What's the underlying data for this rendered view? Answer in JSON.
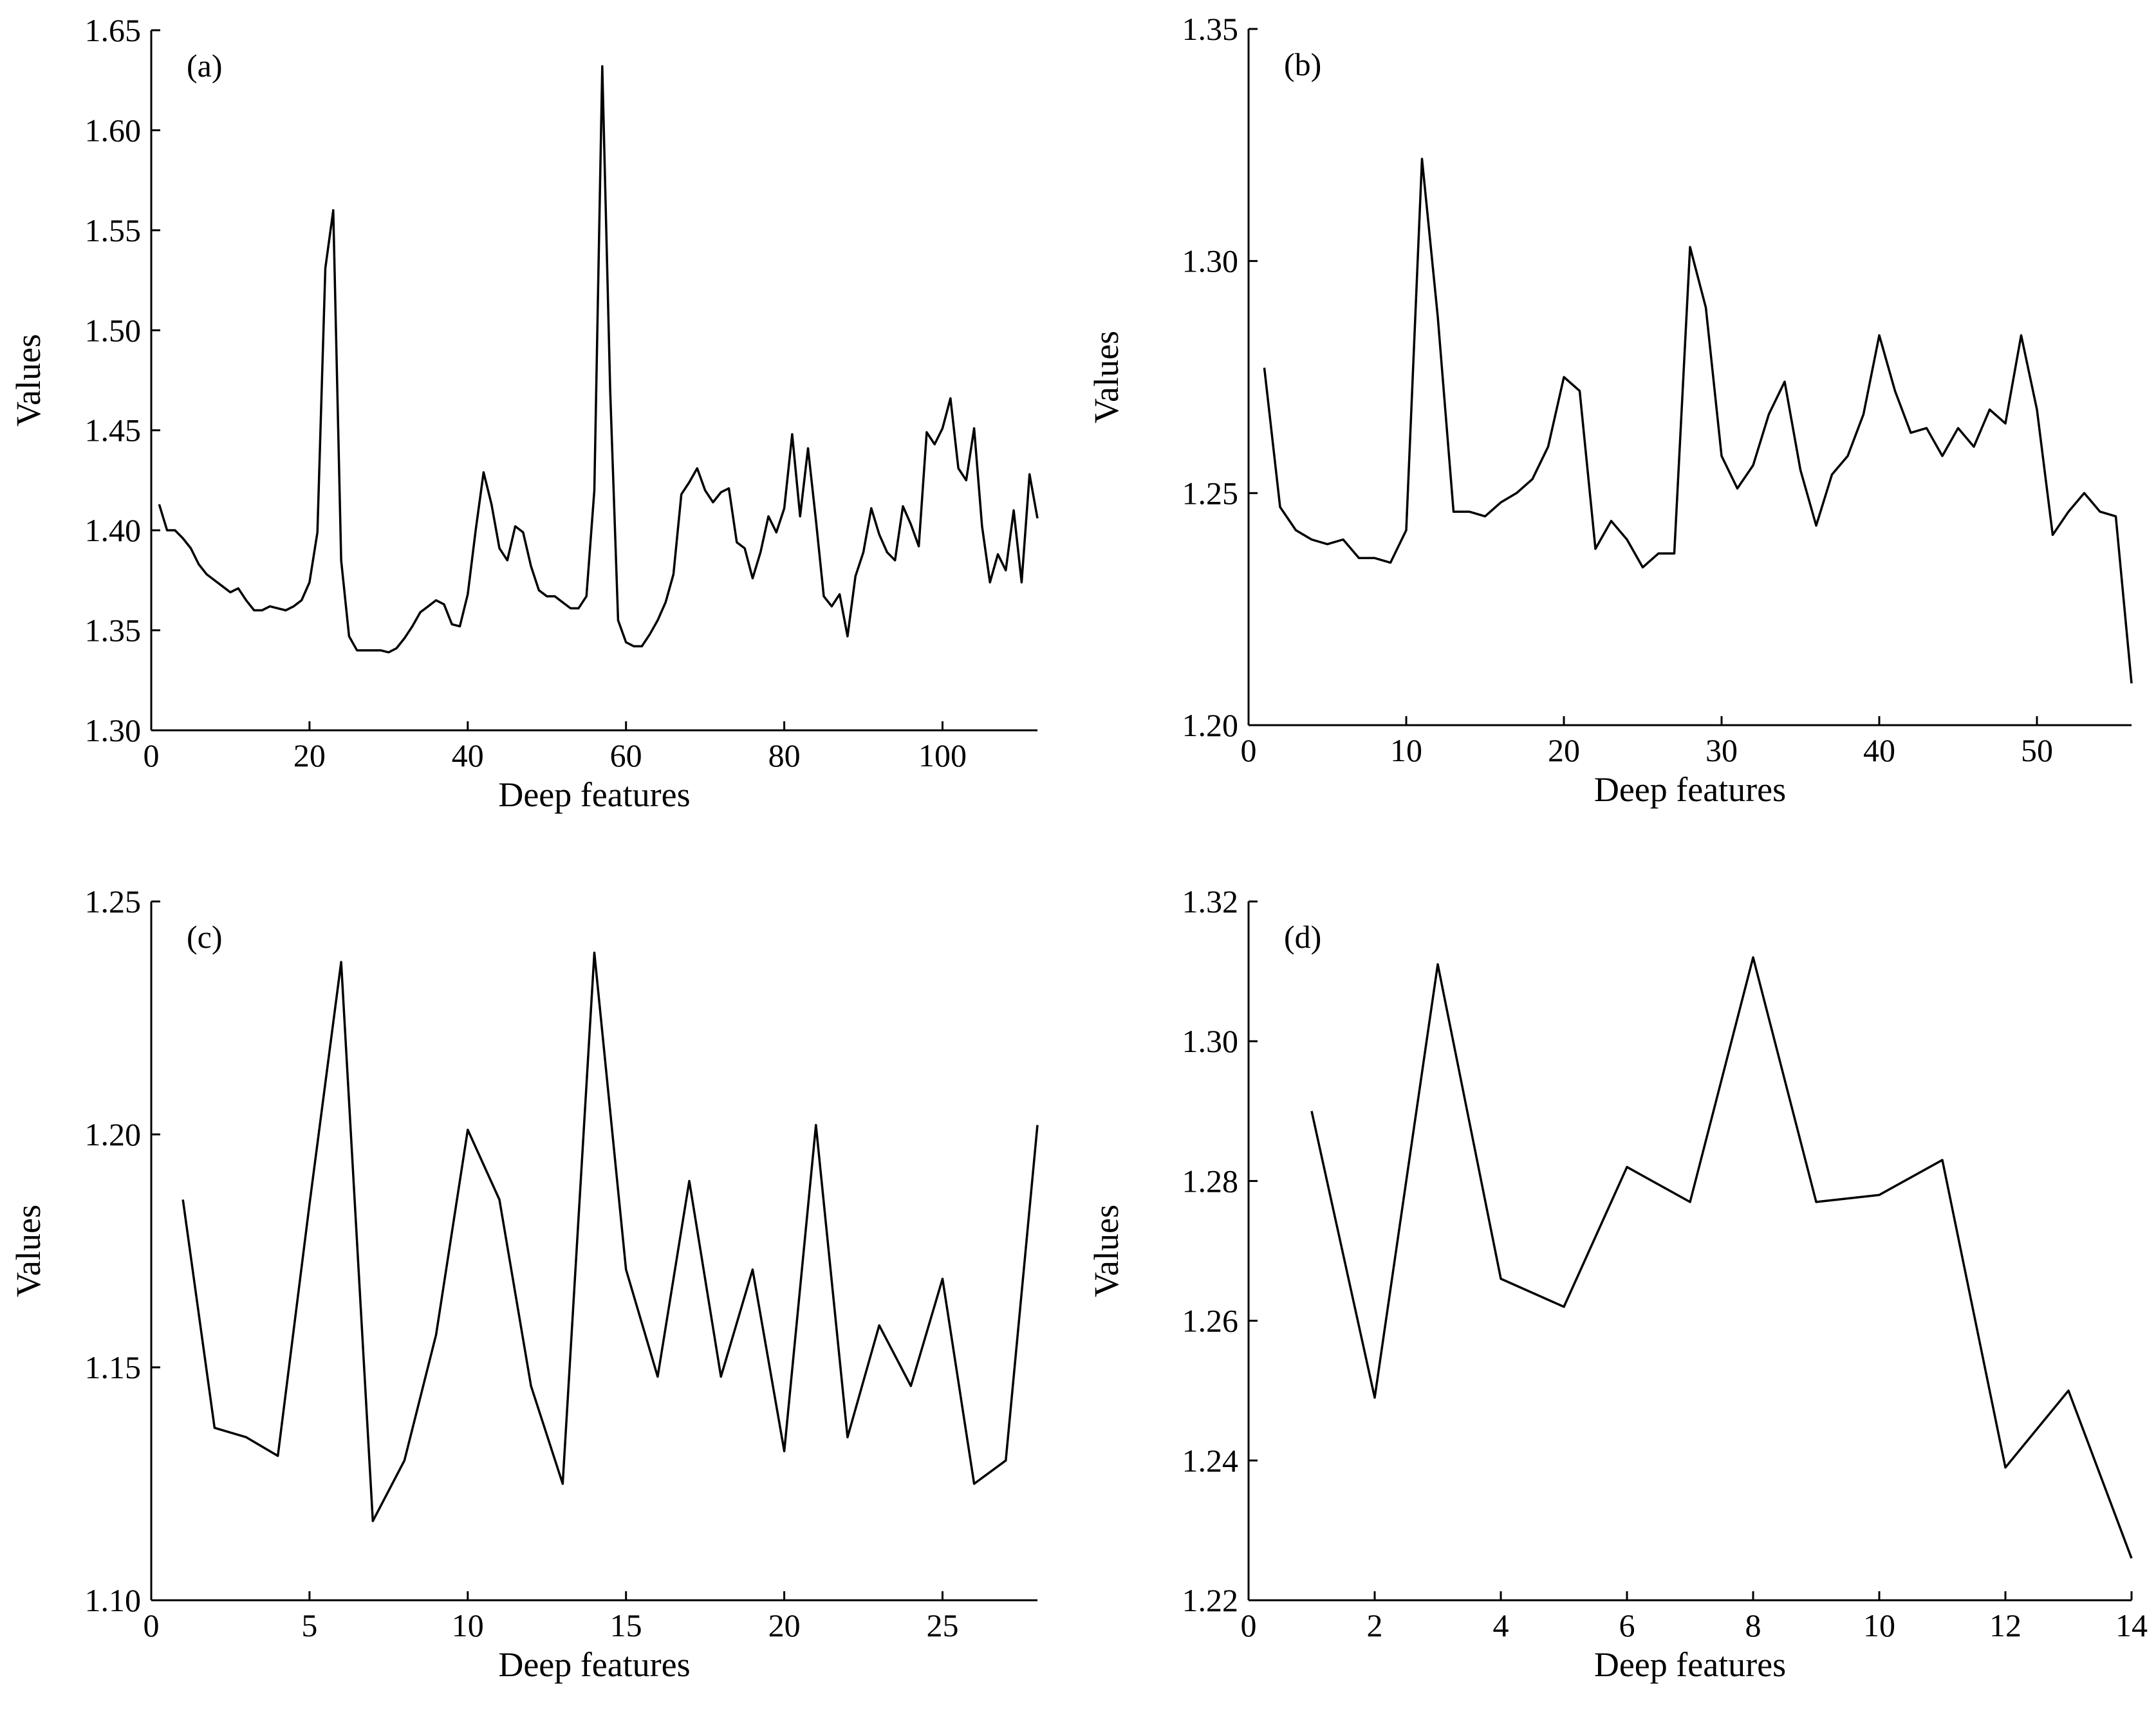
{
  "chart_data": [
    {
      "type": "line",
      "panel_label": "(a)",
      "xlabel": "Deep features",
      "ylabel": "Values",
      "xlim": [
        0,
        112
      ],
      "ylim": [
        1.3,
        1.65
      ],
      "xticks": [
        0,
        20,
        40,
        60,
        80,
        100
      ],
      "xtick_labels": [
        "0",
        "20",
        "40",
        "60",
        "80",
        "100"
      ],
      "yticks": [
        1.3,
        1.35,
        1.4,
        1.45,
        1.5,
        1.55,
        1.6,
        1.65
      ],
      "ytick_labels": [
        "1.30",
        "1.35",
        "1.40",
        "1.45",
        "1.50",
        "1.55",
        "1.60",
        "1.65"
      ],
      "grid": false,
      "series": [
        {
          "x": [
            1,
            2,
            3,
            4,
            5,
            6,
            7,
            8,
            9,
            10,
            11,
            12,
            13,
            14,
            15,
            16,
            17,
            18,
            19,
            20,
            21,
            22,
            23,
            24,
            25,
            26,
            27,
            28,
            29,
            30,
            31,
            32,
            33,
            34,
            35,
            36,
            37,
            38,
            39,
            40,
            41,
            42,
            43,
            44,
            45,
            46,
            47,
            48,
            49,
            50,
            51,
            52,
            53,
            54,
            55,
            56,
            57,
            58,
            59,
            60,
            61,
            62,
            63,
            64,
            65,
            66,
            67,
            68,
            69,
            70,
            71,
            72,
            73,
            74,
            75,
            76,
            77,
            78,
            79,
            80,
            81,
            82,
            83,
            84,
            85,
            86,
            87,
            88,
            89,
            90,
            91,
            92,
            93,
            94,
            95,
            96,
            97,
            98,
            99,
            100,
            101,
            102,
            103,
            104,
            105,
            106,
            107,
            108,
            109,
            110,
            111,
            112
          ],
          "y": [
            1.413,
            1.4,
            1.4,
            1.396,
            1.391,
            1.383,
            1.378,
            1.375,
            1.372,
            1.369,
            1.371,
            1.365,
            1.36,
            1.36,
            1.362,
            1.361,
            1.36,
            1.362,
            1.365,
            1.374,
            1.399,
            1.531,
            1.56,
            1.385,
            1.347,
            1.34,
            1.34,
            1.34,
            1.34,
            1.339,
            1.341,
            1.346,
            1.352,
            1.359,
            1.362,
            1.365,
            1.363,
            1.353,
            1.352,
            1.368,
            1.4,
            1.429,
            1.413,
            1.391,
            1.385,
            1.402,
            1.399,
            1.382,
            1.37,
            1.367,
            1.367,
            1.364,
            1.361,
            1.361,
            1.367,
            1.42,
            1.632,
            1.47,
            1.355,
            1.344,
            1.342,
            1.342,
            1.348,
            1.355,
            1.364,
            1.378,
            1.418,
            1.424,
            1.431,
            1.42,
            1.414,
            1.419,
            1.421,
            1.394,
            1.391,
            1.376,
            1.389,
            1.407,
            1.399,
            1.411,
            1.448,
            1.407,
            1.441,
            1.405,
            1.367,
            1.362,
            1.368,
            1.347,
            1.377,
            1.389,
            1.411,
            1.398,
            1.389,
            1.385,
            1.412,
            1.403,
            1.392,
            1.449,
            1.443,
            1.451,
            1.466,
            1.431,
            1.425,
            1.451,
            1.402,
            1.374,
            1.388,
            1.38,
            1.41,
            1.374,
            1.428,
            1.406
          ]
        }
      ]
    },
    {
      "type": "line",
      "panel_label": "(b)",
      "xlabel": "Deep features",
      "ylabel": "Values",
      "xlim": [
        0,
        56
      ],
      "ylim": [
        1.2,
        1.35
      ],
      "xticks": [
        0,
        10,
        20,
        30,
        40,
        50
      ],
      "xtick_labels": [
        "0",
        "10",
        "20",
        "30",
        "40",
        "50"
      ],
      "yticks": [
        1.2,
        1.25,
        1.3,
        1.35
      ],
      "ytick_labels": [
        "1.20",
        "1.25",
        "1.30",
        "1.35"
      ],
      "grid": false,
      "series": [
        {
          "x": [
            1,
            2,
            3,
            4,
            5,
            6,
            7,
            8,
            9,
            10,
            11,
            12,
            13,
            14,
            15,
            16,
            17,
            18,
            19,
            20,
            21,
            22,
            23,
            24,
            25,
            26,
            27,
            28,
            29,
            30,
            31,
            32,
            33,
            34,
            35,
            36,
            37,
            38,
            39,
            40,
            41,
            42,
            43,
            44,
            45,
            46,
            47,
            48,
            49,
            50,
            51,
            52,
            53,
            54,
            55,
            56
          ],
          "y": [
            1.277,
            1.247,
            1.242,
            1.24,
            1.239,
            1.24,
            1.236,
            1.236,
            1.235,
            1.242,
            1.322,
            1.288,
            1.246,
            1.246,
            1.245,
            1.248,
            1.25,
            1.253,
            1.26,
            1.275,
            1.272,
            1.238,
            1.244,
            1.24,
            1.234,
            1.237,
            1.237,
            1.303,
            1.29,
            1.258,
            1.251,
            1.256,
            1.267,
            1.274,
            1.255,
            1.243,
            1.254,
            1.258,
            1.267,
            1.284,
            1.272,
            1.263,
            1.264,
            1.258,
            1.264,
            1.26,
            1.268,
            1.265,
            1.284,
            1.268,
            1.241,
            1.246,
            1.25,
            1.246,
            1.245,
            1.209
          ]
        }
      ]
    },
    {
      "type": "line",
      "panel_label": "(c)",
      "xlabel": "Deep features",
      "ylabel": "Values",
      "xlim": [
        0,
        28
      ],
      "ylim": [
        1.1,
        1.25
      ],
      "xticks": [
        0,
        5,
        10,
        15,
        20,
        25
      ],
      "xtick_labels": [
        "0",
        "5",
        "10",
        "15",
        "20",
        "25"
      ],
      "yticks": [
        1.1,
        1.15,
        1.2,
        1.25
      ],
      "ytick_labels": [
        "1.10",
        "1.15",
        "1.20",
        "1.25"
      ],
      "grid": false,
      "series": [
        {
          "x": [
            1,
            2,
            3,
            4,
            5,
            6,
            7,
            8,
            9,
            10,
            11,
            12,
            13,
            14,
            15,
            16,
            17,
            18,
            19,
            20,
            21,
            22,
            23,
            24,
            25,
            26,
            27,
            28
          ],
          "y": [
            1.186,
            1.137,
            1.135,
            1.131,
            1.185,
            1.237,
            1.117,
            1.13,
            1.157,
            1.201,
            1.186,
            1.146,
            1.125,
            1.239,
            1.171,
            1.148,
            1.19,
            1.148,
            1.171,
            1.132,
            1.202,
            1.135,
            1.159,
            1.146,
            1.169,
            1.125,
            1.13,
            1.202
          ]
        }
      ]
    },
    {
      "type": "line",
      "panel_label": "(d)",
      "xlabel": "Deep features",
      "ylabel": "Values",
      "xlim": [
        0,
        14
      ],
      "ylim": [
        1.22,
        1.32
      ],
      "xticks": [
        0,
        2,
        4,
        6,
        8,
        10,
        12,
        14
      ],
      "xtick_labels": [
        "0",
        "2",
        "4",
        "6",
        "8",
        "10",
        "12",
        "14"
      ],
      "yticks": [
        1.22,
        1.24,
        1.26,
        1.28,
        1.3,
        1.32
      ],
      "ytick_labels": [
        "1.22",
        "1.24",
        "1.26",
        "1.28",
        "1.30",
        "1.32"
      ],
      "grid": false,
      "series": [
        {
          "x": [
            1,
            2,
            3,
            4,
            5,
            6,
            7,
            8,
            9,
            10,
            11,
            12,
            13,
            14
          ],
          "y": [
            1.29,
            1.249,
            1.311,
            1.266,
            1.262,
            1.282,
            1.277,
            1.312,
            1.277,
            1.278,
            1.283,
            1.239,
            1.25,
            1.226
          ]
        }
      ]
    }
  ]
}
